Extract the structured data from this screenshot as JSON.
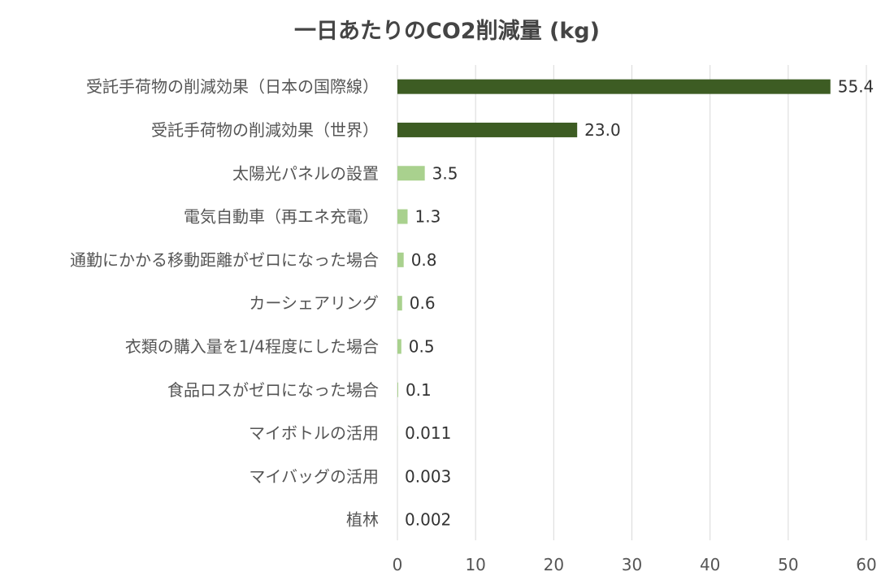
{
  "chart_data": {
    "type": "bar",
    "orientation": "horizontal",
    "title": "一日あたりのCO2削減量 (kg)",
    "xlabel": "",
    "ylabel": "",
    "xlim": [
      0,
      60
    ],
    "xticks": [
      0,
      10,
      20,
      30,
      40,
      50,
      60
    ],
    "grid": "vertical",
    "legend": "none",
    "categories": [
      "受託手荷物の削減効果（日本の国際線）",
      "受託手荷物の削減効果（世界）",
      "太陽光パネルの設置",
      "電気自動車（再エネ充電）",
      "通勤にかかる移動距離がゼロになった場合",
      "カーシェアリング",
      "衣類の購入量を1/4程度にした場合",
      "食品ロスがゼロになった場合",
      "マイボトルの活用",
      "マイバッグの活用",
      "植林"
    ],
    "values": [
      55.4,
      23.0,
      3.5,
      1.3,
      0.8,
      0.6,
      0.5,
      0.1,
      0.011,
      0.003,
      0.002
    ],
    "value_labels": [
      "55.4",
      "23.0",
      "3.5",
      "1.3",
      "0.8",
      "0.6",
      "0.5",
      "0.1",
      "0.011",
      "0.003",
      "0.002"
    ],
    "colors": {
      "dark": "#3d5c23",
      "light": "#a9d18e",
      "grid": "#d9d9d9"
    },
    "bar_color_index": [
      "dark",
      "dark",
      "light",
      "light",
      "light",
      "light",
      "light",
      "light",
      "light",
      "light",
      "light"
    ]
  }
}
